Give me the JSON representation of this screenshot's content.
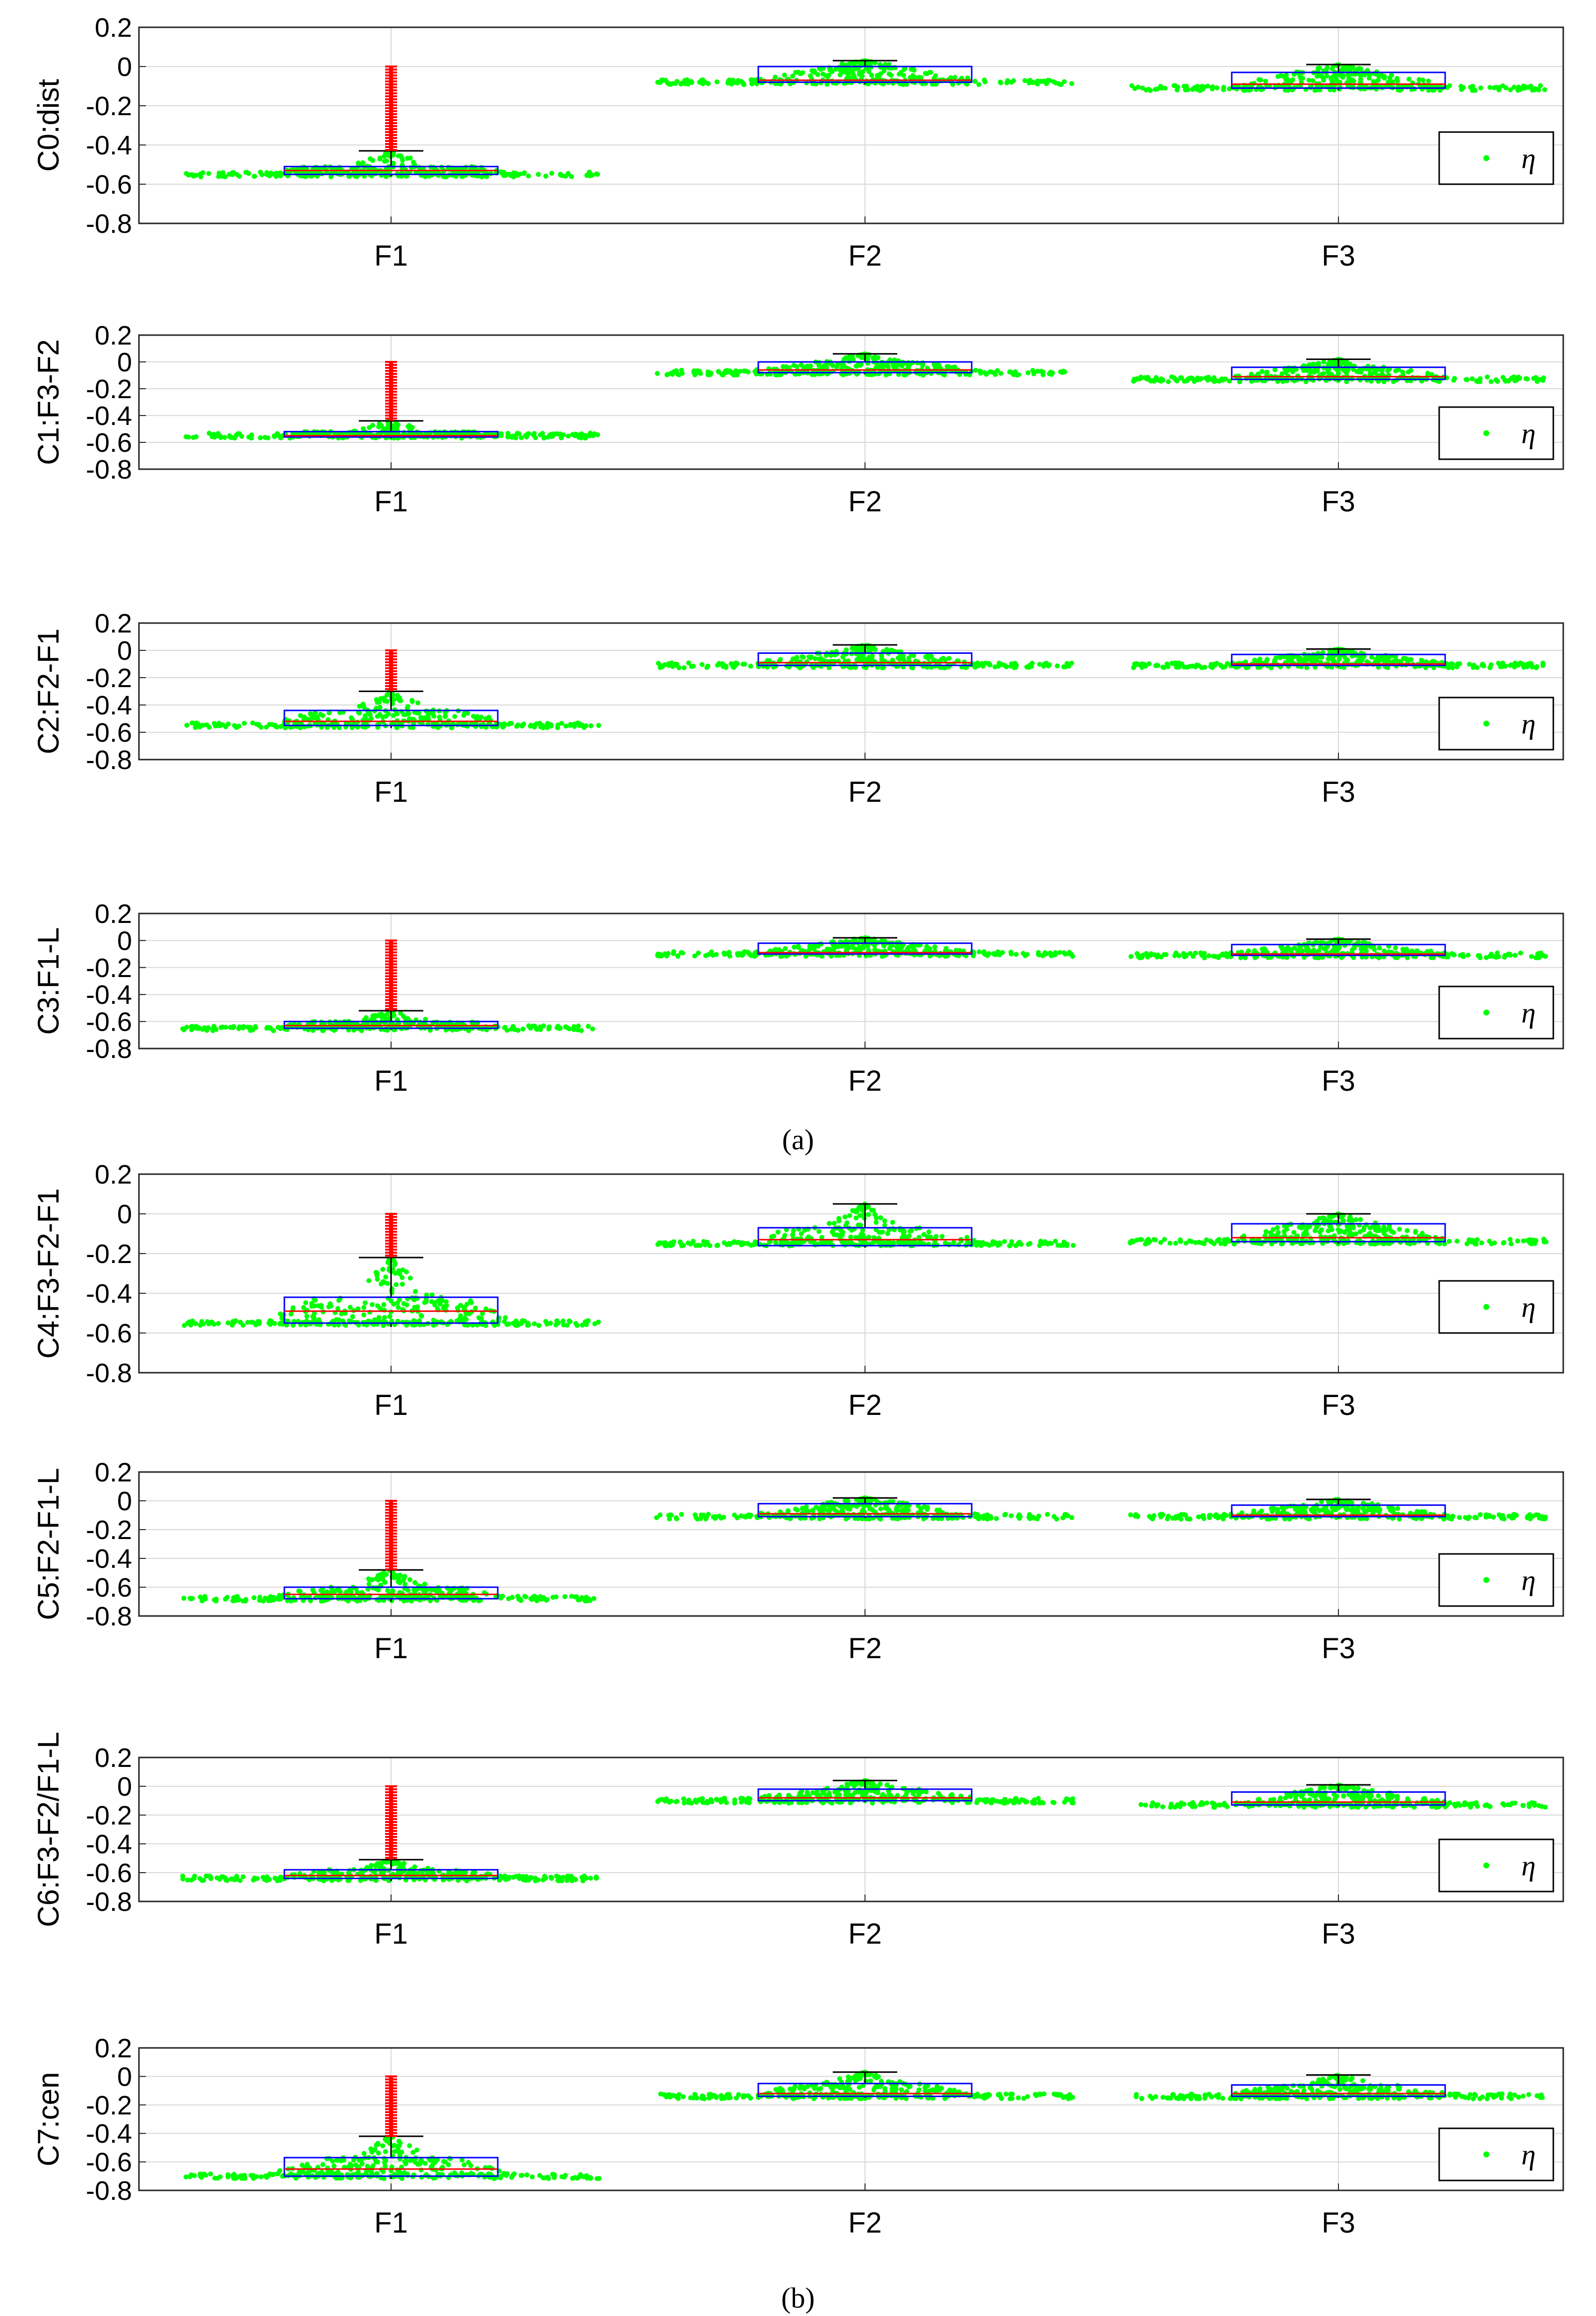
{
  "figure": {
    "caption_a": "(a)",
    "caption_b": "(b)",
    "legend_symbol": "η"
  },
  "colors": {
    "points": "#00ff00",
    "outliers": "#ff0000",
    "box": "#0000ff",
    "median": "#ff0000",
    "whisker": "#000000",
    "grid": "#d9d9d9",
    "axis": "#262626"
  },
  "chart_data": [
    {
      "type": "box",
      "ylabel": "C0:dist",
      "categories": [
        "F1",
        "F2",
        "F3"
      ],
      "yticks": [
        "0.2",
        "0",
        "-0.2",
        "-0.4",
        "-0.6",
        "-0.8"
      ],
      "ylim": [
        -0.8,
        0.2
      ],
      "legend": "η",
      "boxes": [
        {
          "q1": -0.55,
          "median": -0.53,
          "q3": -0.51,
          "whisker_low": -0.56,
          "whisker_high": -0.43,
          "base": -0.55,
          "outlier_top": 0.0
        },
        {
          "q1": -0.08,
          "median": -0.07,
          "q3": 0.0,
          "whisker_low": -0.09,
          "whisker_high": 0.03,
          "base": -0.08,
          "outlier_top": null
        },
        {
          "q1": -0.11,
          "median": -0.09,
          "q3": -0.03,
          "whisker_low": -0.12,
          "whisker_high": 0.01,
          "base": -0.11,
          "outlier_top": null
        }
      ]
    },
    {
      "type": "box",
      "ylabel": "C1:F3-F2",
      "categories": [
        "F1",
        "F2",
        "F3"
      ],
      "yticks": [
        "0.2",
        "0",
        "-0.2",
        "-0.4",
        "-0.6",
        "-0.8"
      ],
      "ylim": [
        -0.8,
        0.2
      ],
      "legend": "η",
      "boxes": [
        {
          "q1": -0.56,
          "median": -0.55,
          "q3": -0.52,
          "whisker_low": -0.57,
          "whisker_high": -0.44,
          "base": -0.55,
          "outlier_top": 0.0
        },
        {
          "q1": -0.08,
          "median": -0.06,
          "q3": 0.0,
          "whisker_low": -0.09,
          "whisker_high": 0.06,
          "base": -0.08,
          "outlier_top": null
        },
        {
          "q1": -0.13,
          "median": -0.11,
          "q3": -0.04,
          "whisker_low": -0.14,
          "whisker_high": 0.02,
          "base": -0.13,
          "outlier_top": null
        }
      ]
    },
    {
      "type": "box",
      "ylabel": "C2:F2-F1",
      "categories": [
        "F1",
        "F2",
        "F3"
      ],
      "yticks": [
        "0.2",
        "0",
        "-0.2",
        "-0.4",
        "-0.6",
        "-0.8"
      ],
      "ylim": [
        -0.8,
        0.2
      ],
      "legend": "η",
      "boxes": [
        {
          "q1": -0.55,
          "median": -0.52,
          "q3": -0.44,
          "whisker_low": -0.57,
          "whisker_high": -0.3,
          "base": -0.55,
          "outlier_top": 0.0
        },
        {
          "q1": -0.11,
          "median": -0.09,
          "q3": -0.02,
          "whisker_low": -0.12,
          "whisker_high": 0.04,
          "base": -0.11,
          "outlier_top": null
        },
        {
          "q1": -0.11,
          "median": -0.1,
          "q3": -0.03,
          "whisker_low": -0.12,
          "whisker_high": 0.01,
          "base": -0.11,
          "outlier_top": null
        }
      ]
    },
    {
      "type": "box",
      "ylabel": "C3:F1-L",
      "categories": [
        "F1",
        "F2",
        "F3"
      ],
      "yticks": [
        "0.2",
        "0",
        "-0.2",
        "-0.4",
        "-0.6",
        "-0.8"
      ],
      "ylim": [
        -0.8,
        0.2
      ],
      "legend": "η",
      "boxes": [
        {
          "q1": -0.65,
          "median": -0.63,
          "q3": -0.6,
          "whisker_low": -0.66,
          "whisker_high": -0.52,
          "base": -0.65,
          "outlier_top": 0.0
        },
        {
          "q1": -0.1,
          "median": -0.09,
          "q3": -0.02,
          "whisker_low": -0.11,
          "whisker_high": 0.02,
          "base": -0.1,
          "outlier_top": null
        },
        {
          "q1": -0.11,
          "median": -0.1,
          "q3": -0.03,
          "whisker_low": -0.12,
          "whisker_high": 0.01,
          "base": -0.11,
          "outlier_top": null
        }
      ]
    },
    {
      "type": "box",
      "ylabel": "C4:F3-F2-F1",
      "categories": [
        "F1",
        "F2",
        "F3"
      ],
      "yticks": [
        "0.2",
        "0",
        "-0.2",
        "-0.4",
        "-0.6",
        "-0.8"
      ],
      "ylim": [
        -0.8,
        0.2
      ],
      "legend": "η",
      "boxes": [
        {
          "q1": -0.55,
          "median": -0.49,
          "q3": -0.42,
          "whisker_low": -0.57,
          "whisker_high": -0.22,
          "base": -0.55,
          "outlier_top": 0.0
        },
        {
          "q1": -0.16,
          "median": -0.13,
          "q3": -0.07,
          "whisker_low": -0.17,
          "whisker_high": 0.05,
          "base": -0.15,
          "outlier_top": null
        },
        {
          "q1": -0.14,
          "median": -0.12,
          "q3": -0.05,
          "whisker_low": -0.15,
          "whisker_high": 0.0,
          "base": -0.14,
          "outlier_top": null
        }
      ]
    },
    {
      "type": "box",
      "ylabel": "C5:F2-F1-L",
      "categories": [
        "F1",
        "F2",
        "F3"
      ],
      "yticks": [
        "0.2",
        "0",
        "-0.2",
        "-0.4",
        "-0.6",
        "-0.8"
      ],
      "ylim": [
        -0.8,
        0.2
      ],
      "legend": "η",
      "boxes": [
        {
          "q1": -0.68,
          "median": -0.65,
          "q3": -0.6,
          "whisker_low": -0.7,
          "whisker_high": -0.48,
          "base": -0.68,
          "outlier_top": 0.0
        },
        {
          "q1": -0.11,
          "median": -0.09,
          "q3": -0.02,
          "whisker_low": -0.12,
          "whisker_high": 0.02,
          "base": -0.11,
          "outlier_top": null
        },
        {
          "q1": -0.11,
          "median": -0.1,
          "q3": -0.03,
          "whisker_low": -0.12,
          "whisker_high": 0.01,
          "base": -0.11,
          "outlier_top": null
        }
      ]
    },
    {
      "type": "box",
      "ylabel": "C6:F3-F2/F1-L",
      "categories": [
        "F1",
        "F2",
        "F3"
      ],
      "yticks": [
        "0.2",
        "0",
        "-0.2",
        "-0.4",
        "-0.6",
        "-0.8"
      ],
      "ylim": [
        -0.8,
        0.2
      ],
      "legend": "η",
      "boxes": [
        {
          "q1": -0.64,
          "median": -0.62,
          "q3": -0.58,
          "whisker_low": -0.66,
          "whisker_high": -0.51,
          "base": -0.64,
          "outlier_top": 0.0
        },
        {
          "q1": -0.1,
          "median": -0.08,
          "q3": -0.02,
          "whisker_low": -0.11,
          "whisker_high": 0.04,
          "base": -0.1,
          "outlier_top": null
        },
        {
          "q1": -0.13,
          "median": -0.11,
          "q3": -0.04,
          "whisker_low": -0.14,
          "whisker_high": 0.01,
          "base": -0.13,
          "outlier_top": null
        }
      ]
    },
    {
      "type": "box",
      "ylabel": "C7:cen",
      "categories": [
        "F1",
        "F2",
        "F3"
      ],
      "yticks": [
        "0.2",
        "0",
        "-0.2",
        "-0.4",
        "-0.6",
        "-0.8"
      ],
      "ylim": [
        -0.8,
        0.2
      ],
      "legend": "η",
      "boxes": [
        {
          "q1": -0.7,
          "median": -0.65,
          "q3": -0.57,
          "whisker_low": -0.72,
          "whisker_high": -0.42,
          "base": -0.7,
          "outlier_top": 0.0
        },
        {
          "q1": -0.14,
          "median": -0.12,
          "q3": -0.05,
          "whisker_low": -0.15,
          "whisker_high": 0.03,
          "base": -0.14,
          "outlier_top": null
        },
        {
          "q1": -0.14,
          "median": -0.12,
          "q3": -0.06,
          "whisker_low": -0.15,
          "whisker_high": 0.01,
          "base": -0.14,
          "outlier_top": null
        }
      ]
    }
  ]
}
